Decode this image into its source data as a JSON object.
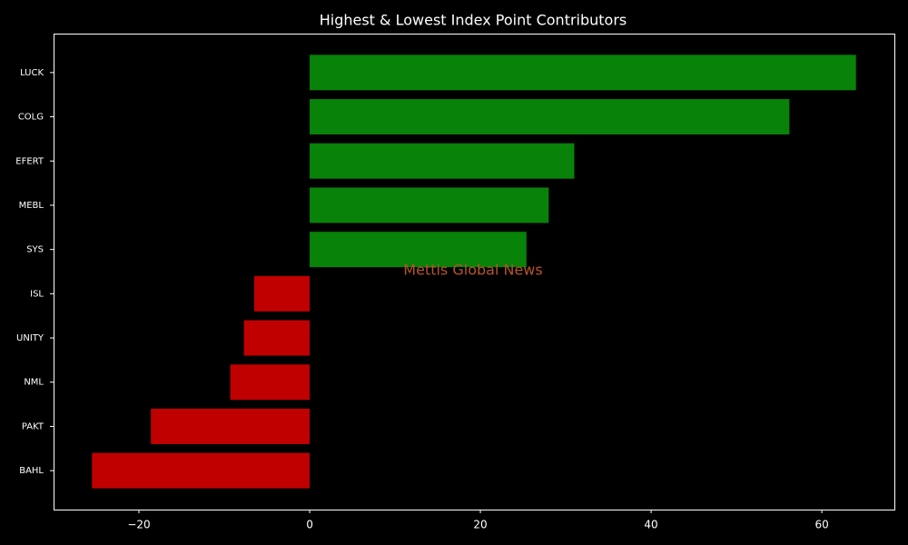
{
  "chart_data": {
    "type": "barh",
    "title": "Highest & Lowest Index Point Contributors",
    "categories": [
      "LUCK",
      "COLG",
      "EFERT",
      "MEBL",
      "SYS",
      "ISL",
      "UNITY",
      "NML",
      "PAKT",
      "BAHL"
    ],
    "values": [
      64.0,
      56.2,
      31.0,
      28.0,
      25.4,
      -6.5,
      -7.7,
      -9.3,
      -18.6,
      -25.5
    ],
    "colors": [
      "#088208",
      "#088208",
      "#088208",
      "#088208",
      "#088208",
      "#c00000",
      "#c00000",
      "#c00000",
      "#c00000",
      "#c00000"
    ],
    "xlim": [
      -30,
      68.5
    ],
    "xticks": [
      {
        "value": -20,
        "label": "−20"
      },
      0,
      20,
      40,
      60
    ],
    "annotation": "Mettis Global News"
  }
}
